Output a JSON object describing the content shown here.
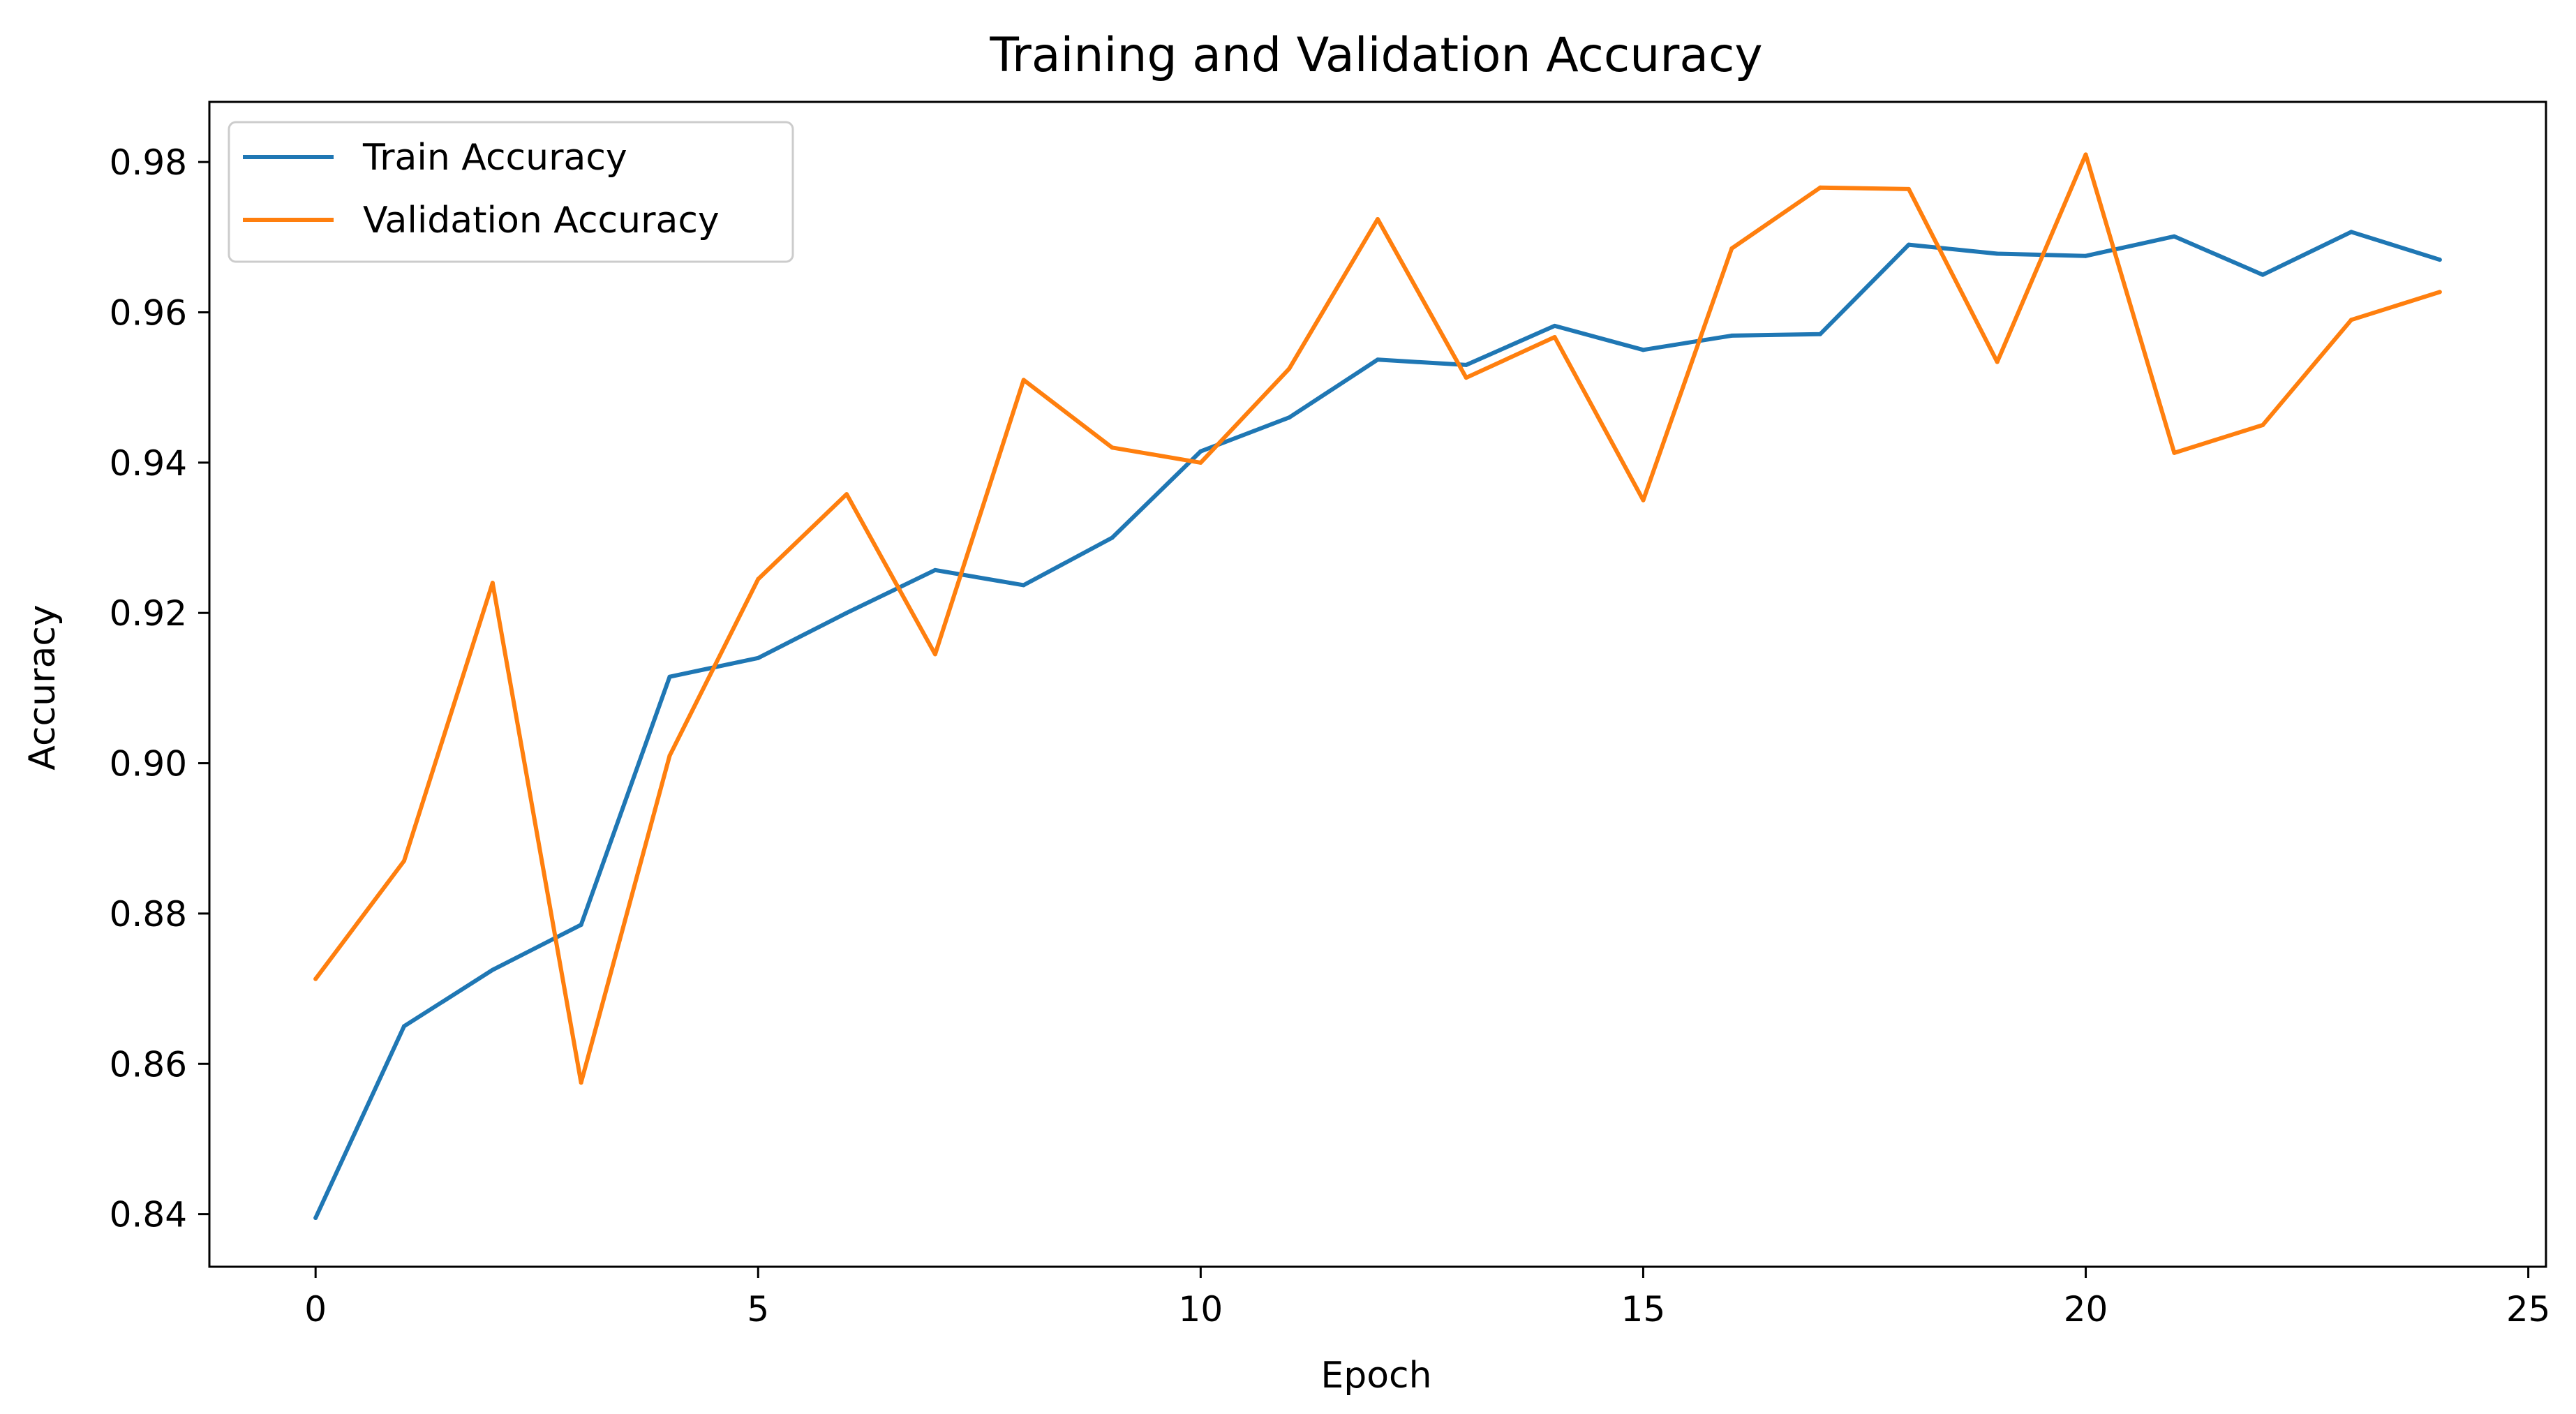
{
  "chart_data": {
    "type": "line",
    "title": "Training and Validation Accuracy",
    "xlabel": "Epoch",
    "ylabel": "Accuracy",
    "xlim": [
      -1.2,
      25.2
    ],
    "ylim": [
      0.833,
      0.988
    ],
    "xticks": [
      0,
      5,
      10,
      15,
      20,
      25
    ],
    "yticks": [
      0.84,
      0.86,
      0.88,
      0.9,
      0.92,
      0.94,
      0.96,
      0.98
    ],
    "ytick_labels": [
      "0.84",
      "0.86",
      "0.88",
      "0.90",
      "0.92",
      "0.94",
      "0.96",
      "0.98"
    ],
    "grid": false,
    "legend_position": "top-left",
    "x": [
      0,
      1,
      2,
      3,
      4,
      5,
      6,
      7,
      8,
      9,
      10,
      11,
      12,
      13,
      14,
      15,
      16,
      17,
      18,
      19,
      20,
      21,
      22,
      23,
      24
    ],
    "series": [
      {
        "name": "Train Accuracy",
        "color": "#1f77b4",
        "values": [
          0.8395,
          0.865,
          0.8725,
          0.8785,
          0.9115,
          0.914,
          0.92,
          0.9257,
          0.9237,
          0.93,
          0.9415,
          0.946,
          0.9537,
          0.953,
          0.9582,
          0.955,
          0.9569,
          0.9571,
          0.969,
          0.9678,
          0.9675,
          0.9701,
          0.965,
          0.9707,
          0.967
        ]
      },
      {
        "name": "Validation Accuracy",
        "color": "#ff7f0e",
        "values": [
          0.8713,
          0.887,
          0.924,
          0.8575,
          0.901,
          0.9245,
          0.9358,
          0.9145,
          0.951,
          0.942,
          0.94,
          0.9525,
          0.9724,
          0.9513,
          0.9567,
          0.935,
          0.9685,
          0.9766,
          0.9764,
          0.9534,
          0.981,
          0.9413,
          0.945,
          0.959,
          0.9627
        ]
      }
    ]
  }
}
